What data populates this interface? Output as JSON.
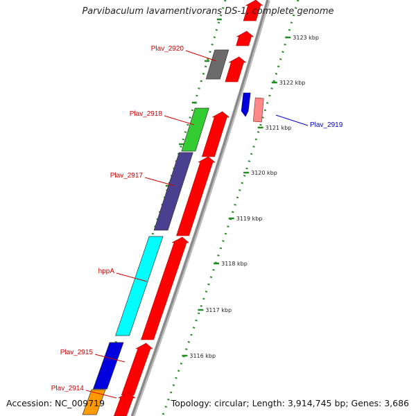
{
  "title": "Parvibaculum lavamentivorans DS-1, complete genome",
  "footer": {
    "accession": "Accession: NC_009719",
    "topology": "Topology: circular; Length: 3,914,745 bp; Genes: 3,686"
  },
  "genes": [
    {
      "name": "Plav_2920",
      "color": "#6b6b6b"
    },
    {
      "name": "Plav_2918",
      "color": "#33cc33"
    },
    {
      "name": "Plav_2917",
      "color": "#4b3f8f"
    },
    {
      "name": "hppA",
      "color": "#00ffff"
    },
    {
      "name": "Plav_2915",
      "color": "#0000dd"
    },
    {
      "name": "Plav_2914",
      "color": "#ff9900"
    },
    {
      "name": "Plav_2919",
      "color": "#ff8888"
    }
  ],
  "ticks": [
    "3123 kbp",
    "3122 kbp",
    "3121 kbp",
    "3120 kbp",
    "3119 kbp",
    "3118 kbp",
    "3117 kbp",
    "3116 kbp"
  ],
  "colors": {
    "cds_arrow": "#ff0000",
    "backbone": "#888888",
    "tick_dots": "#228b22",
    "label_red": "#d00000",
    "label_blue": "#0000cc"
  }
}
